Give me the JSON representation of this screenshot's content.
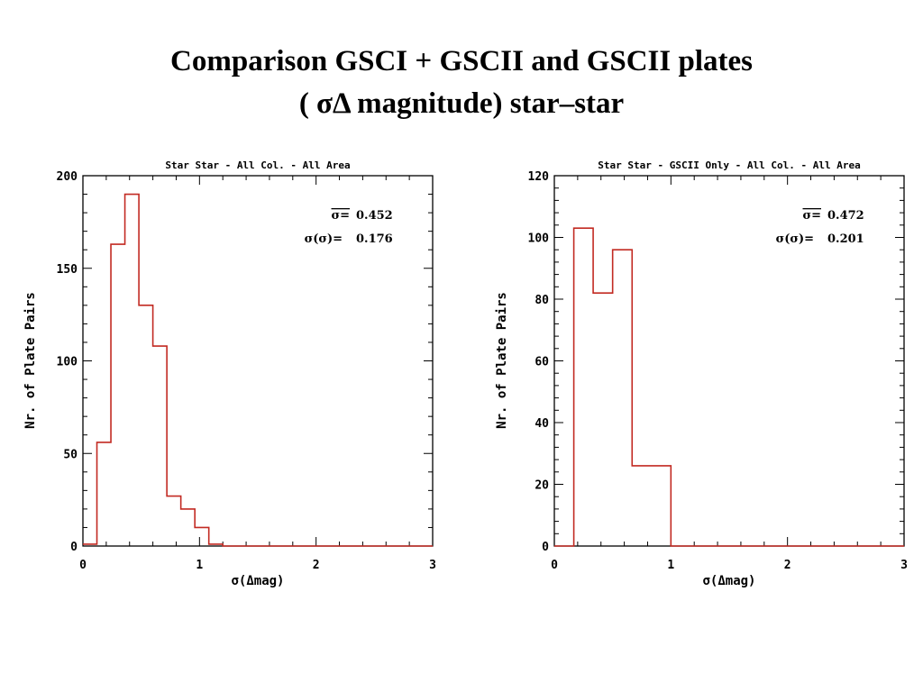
{
  "slide": {
    "title_line_1": "Comparison GSCI + GSCII and GSCII plates",
    "title_line_2": "( σΔ magnitude) star–star"
  },
  "colors": {
    "histogram": "#c22a22",
    "axes": "#000000"
  },
  "chart_data": [
    {
      "type": "histogram",
      "title": "Star Star - All Col. - All Area",
      "xlabel": "σ(Δmag)",
      "ylabel": "Nr. of Plate Pairs",
      "xlim": [
        0,
        3
      ],
      "ylim": [
        0,
        200
      ],
      "x_ticks": [
        0,
        1,
        2,
        3
      ],
      "y_ticks": [
        0,
        50,
        100,
        150,
        200
      ],
      "bin_edges": [
        0.0,
        0.12,
        0.24,
        0.36,
        0.48,
        0.6,
        0.72,
        0.84,
        0.96,
        1.08,
        1.2,
        3.0
      ],
      "counts": [
        1,
        56,
        163,
        190,
        130,
        108,
        27,
        20,
        10,
        1,
        0
      ],
      "annotations": [
        {
          "label": "σ=",
          "value": "0.452"
        },
        {
          "label": "σ(σ)=",
          "value": "0.176"
        }
      ],
      "grid": false
    },
    {
      "type": "histogram",
      "title": "Star Star - GSCII Only - All Col. - All Area",
      "xlabel": "σ(Δmag)",
      "ylabel": "Nr. of Plate Pairs",
      "xlim": [
        0,
        3
      ],
      "ylim": [
        0,
        120
      ],
      "x_ticks": [
        0,
        1,
        2,
        3
      ],
      "y_ticks": [
        0,
        20,
        40,
        60,
        80,
        100,
        120
      ],
      "bin_edges": [
        0.0,
        0.167,
        0.333,
        0.5,
        0.667,
        1.0,
        3.0
      ],
      "counts": [
        0,
        103,
        82,
        96,
        26,
        0
      ],
      "annotations": [
        {
          "label": "σ=",
          "value": "0.472"
        },
        {
          "label": "σ(σ)=",
          "value": "0.201"
        }
      ],
      "grid": false
    }
  ]
}
